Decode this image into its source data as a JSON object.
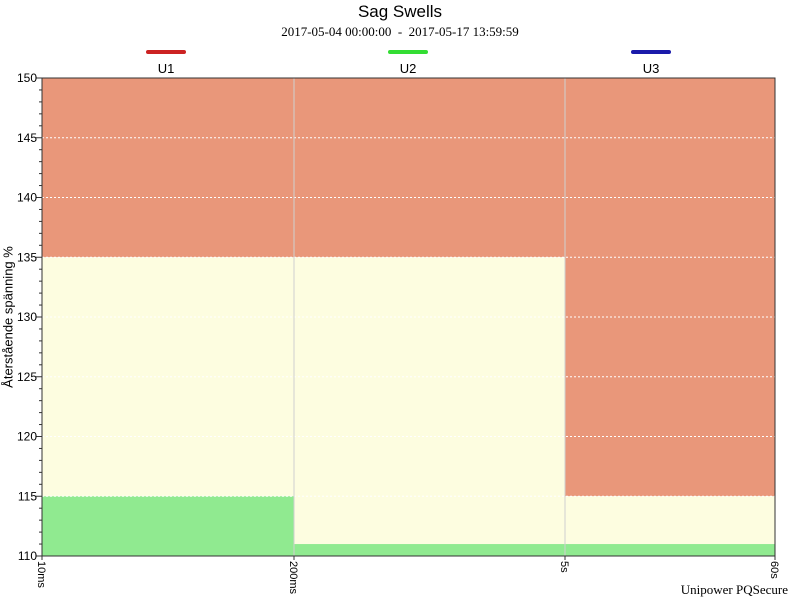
{
  "chart_data": {
    "type": "area",
    "title": "Sag Swells",
    "subtitle": "2017-05-04 00:00:00  -  2017-05-17 13:59:59",
    "xlabel": "",
    "ylabel": "Återstående spänning %",
    "ylim": [
      110,
      150
    ],
    "y_ticks": [
      "110",
      "115",
      "120",
      "125",
      "130",
      "135",
      "140",
      "145",
      "150"
    ],
    "x_ticks": [
      "10ms",
      "200ms",
      "5s",
      "60s"
    ],
    "legend_placement": "top",
    "series": [
      {
        "name": "U1",
        "color": "#cc2222"
      },
      {
        "name": "U2",
        "color": "#33dd33"
      },
      {
        "name": "U3",
        "color": "#1a1aaa"
      }
    ],
    "regions": [
      {
        "x_from": "10ms",
        "x_to": "200ms",
        "green_top": 115,
        "yellow_top": 135,
        "red_top": 150
      },
      {
        "x_from": "200ms",
        "x_to": "5s",
        "green_top": 111,
        "yellow_top": 135,
        "red_top": 150
      },
      {
        "x_from": "5s",
        "x_to": "60s",
        "green_top": 111,
        "yellow_top": 115,
        "red_top": 150
      }
    ],
    "colors": {
      "green": "#90ea90",
      "yellow": "#fdfde0",
      "red": "#e9977a"
    },
    "grid": true
  },
  "footer": {
    "credit": "Unipower PQSecure"
  }
}
